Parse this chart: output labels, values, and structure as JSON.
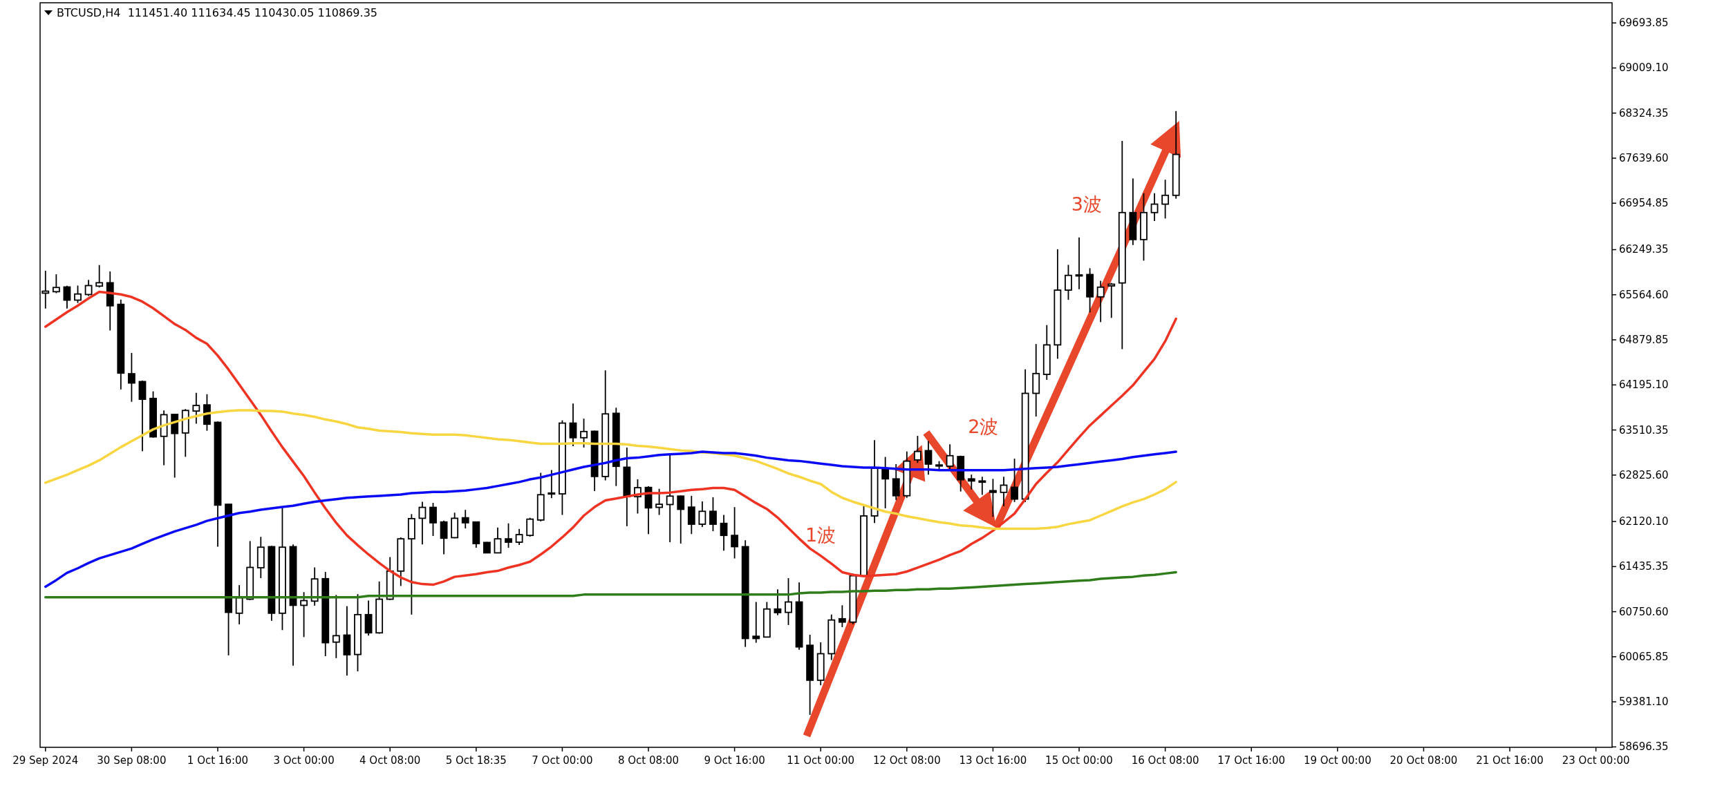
{
  "chart_data": {
    "type": "candlestick",
    "title": "BTCUSD,H4  111451.40 111634.45 110430.05 110869.35",
    "categories": [
      "29 Sep 2024",
      null,
      null,
      null,
      null,
      null,
      null,
      null,
      "30 Sep 08:00",
      null,
      null,
      null,
      null,
      null,
      null,
      null,
      "1 Oct 16:00",
      null,
      null,
      null,
      null,
      null,
      null,
      null,
      "3 Oct 00:00",
      null,
      null,
      null,
      null,
      null,
      null,
      null,
      "4 Oct 08:00",
      null,
      null,
      null,
      null,
      null,
      null,
      null,
      "5 Oct 18:35",
      null,
      null,
      null,
      null,
      null,
      null,
      null,
      "7 Oct 00:00",
      null,
      null,
      null,
      null,
      null,
      null,
      null,
      "8 Oct 08:00",
      null,
      null,
      null,
      null,
      null,
      null,
      null,
      "9 Oct 16:00",
      null,
      null,
      null,
      null,
      null,
      null,
      null,
      "11 Oct 00:00",
      null,
      null,
      null,
      null,
      null,
      null,
      null,
      "12 Oct 08:00",
      null,
      null,
      null,
      null,
      null,
      null,
      null,
      "13 Oct 16:00",
      null,
      null,
      null,
      null,
      null,
      null,
      null,
      "15 Oct 00:00",
      null,
      null,
      null,
      null,
      null,
      null,
      null,
      "16 Oct 08:00",
      null,
      null,
      null,
      null,
      null,
      null,
      null,
      "17 Oct 16:00",
      null,
      null,
      null,
      null,
      null,
      null,
      null,
      "19 Oct 00:00",
      null,
      null,
      null,
      null,
      null,
      null,
      null,
      "20 Oct 08:00",
      null,
      null,
      null,
      null,
      null,
      null,
      null,
      "21 Oct 16:00",
      null,
      null,
      null,
      null,
      null,
      null,
      null,
      "23 Oct 00:00",
      null
    ],
    "ohlc": [
      [
        65589,
        65930,
        65355,
        65619
      ],
      [
        65611,
        65875,
        65589,
        65675
      ],
      [
        65683,
        65700,
        65355,
        65483
      ],
      [
        65483,
        65704,
        65440,
        65576
      ],
      [
        65568,
        65790,
        65547,
        65704
      ],
      [
        65696,
        66016,
        65675,
        65747
      ],
      [
        65747,
        65918,
        65022,
        65397
      ],
      [
        65419,
        65491,
        64126,
        64374
      ],
      [
        64365,
        64681,
        63939,
        64224
      ],
      [
        64246,
        64260,
        63188,
        63977
      ],
      [
        63990,
        64097,
        63393,
        63406
      ],
      [
        63414,
        63807,
        62975,
        63743
      ],
      [
        63747,
        63755,
        62787,
        63457
      ],
      [
        63465,
        63828,
        63103,
        63807
      ],
      [
        63798,
        64075,
        63606,
        63883
      ],
      [
        63892,
        64054,
        63499,
        63598
      ],
      [
        63627,
        63640,
        61738,
        62369
      ],
      [
        62382,
        62390,
        60087,
        60740
      ],
      [
        60727,
        61154,
        60557,
        60962
      ],
      [
        60940,
        61823,
        60928,
        61423
      ],
      [
        61418,
        61887,
        61260,
        61730
      ],
      [
        61738,
        61751,
        60612,
        60727
      ],
      [
        60727,
        62327,
        60471,
        61730
      ],
      [
        61738,
        61772,
        59930,
        60847
      ],
      [
        60847,
        61047,
        60365,
        60919
      ],
      [
        60911,
        61423,
        60842,
        61248
      ],
      [
        61252,
        61354,
        60075,
        60279
      ],
      [
        60288,
        61004,
        60045,
        60386
      ],
      [
        60395,
        60834,
        59780,
        60096
      ],
      [
        60100,
        61017,
        59844,
        60706
      ],
      [
        60706,
        60919,
        60386,
        60429
      ],
      [
        60429,
        61209,
        60416,
        60940
      ],
      [
        60940,
        61580,
        60928,
        61367
      ],
      [
        61367,
        61879,
        61141,
        61857
      ],
      [
        61857,
        62233,
        60706,
        62164
      ],
      [
        62169,
        62420,
        61772,
        62335
      ],
      [
        62335,
        62403,
        61900,
        62101
      ],
      [
        62113,
        62135,
        61623,
        61866
      ],
      [
        61875,
        62254,
        61866,
        62169
      ],
      [
        62177,
        62297,
        62015,
        62101
      ],
      [
        62113,
        62120,
        61721,
        61785
      ],
      [
        61802,
        61810,
        61640,
        61644
      ],
      [
        61644,
        62028,
        61640,
        61857
      ],
      [
        61857,
        62092,
        61721,
        61806
      ],
      [
        61806,
        62007,
        61764,
        61921
      ],
      [
        61909,
        62177,
        61891,
        62156
      ],
      [
        62143,
        62860,
        62122,
        62527
      ],
      [
        62544,
        62902,
        62476,
        62553
      ],
      [
        62540,
        63657,
        62220,
        63615
      ],
      [
        63615,
        63913,
        63265,
        63393
      ],
      [
        63393,
        63683,
        63244,
        63487
      ],
      [
        63491,
        63500,
        62583,
        62804
      ],
      [
        62804,
        64416,
        62745,
        63755
      ],
      [
        63764,
        63849,
        62659,
        62958
      ],
      [
        62945,
        63244,
        62049,
        62497
      ],
      [
        62497,
        62762,
        62241,
        62634
      ],
      [
        62638,
        62655,
        61930,
        62327
      ],
      [
        62335,
        62617,
        62220,
        62382
      ],
      [
        62378,
        63137,
        61806,
        62506
      ],
      [
        62506,
        62515,
        61785,
        62305
      ],
      [
        62339,
        62510,
        61930,
        62079
      ],
      [
        62079,
        62425,
        62037,
        62275
      ],
      [
        62275,
        62489,
        61973,
        62079
      ],
      [
        62092,
        62220,
        61678,
        61909
      ],
      [
        61909,
        62339,
        61559,
        61738
      ],
      [
        61738,
        61836,
        60215,
        60343
      ],
      [
        60377,
        60898,
        60279,
        60343
      ],
      [
        60365,
        60898,
        60360,
        60791
      ],
      [
        60791,
        61090,
        60697,
        60736
      ],
      [
        60740,
        61260,
        60548,
        60898
      ],
      [
        60898,
        61196,
        60173,
        60215
      ],
      [
        60240,
        60400,
        59184,
        59709
      ],
      [
        59709,
        60285,
        59632,
        60112
      ],
      [
        60112,
        60707,
        60016,
        60624
      ],
      [
        60643,
        60848,
        60515,
        60592
      ],
      [
        60592,
        61328,
        60560,
        61296
      ],
      [
        61296,
        62352,
        61283,
        62205
      ],
      [
        62205,
        63357,
        62096,
        62928
      ],
      [
        62928,
        63101,
        62320,
        62768
      ],
      [
        62768,
        62992,
        62448,
        62512
      ],
      [
        62512,
        63184,
        62480,
        63037
      ],
      [
        63056,
        63421,
        63011,
        63184
      ],
      [
        63197,
        63344,
        62832,
        62992
      ],
      [
        62979,
        63037,
        62896,
        62966
      ],
      [
        62960,
        63293,
        62896,
        63120
      ],
      [
        63107,
        63120,
        62576,
        62755
      ],
      [
        62768,
        62832,
        62608,
        62736
      ],
      [
        62736,
        62800,
        62525,
        62717
      ],
      [
        62589,
        62768,
        62192,
        62563
      ],
      [
        62563,
        62800,
        62352,
        62672
      ],
      [
        62640,
        63075,
        62416,
        62461
      ],
      [
        62461,
        64432,
        62416,
        64067
      ],
      [
        64067,
        64816,
        63715,
        64368
      ],
      [
        64355,
        65104,
        64272,
        64803
      ],
      [
        64803,
        66256,
        64592,
        65635
      ],
      [
        65635,
        66019,
        65488,
        65859
      ],
      [
        65853,
        66435,
        65648,
        65866
      ],
      [
        65872,
        65968,
        65296,
        65533
      ],
      [
        65533,
        65776,
        65149,
        65680
      ],
      [
        65699,
        65744,
        65213,
        65725
      ],
      [
        65744,
        67901,
        64739,
        66813
      ],
      [
        66813,
        67331,
        66320,
        66403
      ],
      [
        66403,
        67107,
        66083,
        66813
      ],
      [
        66813,
        67107,
        66685,
        66941
      ],
      [
        66941,
        67312,
        66723,
        67075
      ],
      [
        67075,
        68355,
        67024,
        67696
      ],
      null,
      null,
      null,
      null,
      null,
      null,
      null,
      null,
      null,
      null,
      null,
      null,
      null,
      null,
      null,
      null,
      null,
      null,
      null,
      null,
      null,
      null,
      null,
      null,
      null,
      null,
      null,
      null,
      null,
      null,
      null,
      null,
      null,
      null,
      null,
      null,
      null,
      null,
      null,
      null
    ],
    "series": [
      {
        "type": "line",
        "color": "#ee3322",
        "values": [
          65080,
          65190,
          65300,
          65400,
          65510,
          65610,
          65590,
          65570,
          65530,
          65460,
          65360,
          65240,
          65120,
          65030,
          64910,
          64820,
          64640,
          64430,
          64200,
          63970,
          63740,
          63490,
          63250,
          63030,
          62810,
          62560,
          62320,
          62100,
          61910,
          61760,
          61620,
          61490,
          61370,
          61270,
          61200,
          61170,
          61160,
          61210,
          61280,
          61300,
          61320,
          61350,
          61370,
          61420,
          61460,
          61510,
          61620,
          61740,
          61880,
          62030,
          62210,
          62340,
          62440,
          62470,
          62500,
          62530,
          62550,
          62550,
          62560,
          62580,
          62600,
          62610,
          62630,
          62630,
          62600,
          62500,
          62400,
          62310,
          62180,
          62020,
          61860,
          61710,
          61600,
          61480,
          61350,
          61310,
          61290,
          61300,
          61310,
          61320,
          61360,
          61420,
          61480,
          61540,
          61610,
          61670,
          61780,
          61870,
          61980,
          62110,
          62240,
          62460,
          62690,
          62860,
          63020,
          63210,
          63400,
          63580,
          63730,
          63880,
          64030,
          64190,
          64390,
          64590,
          64860,
          65200,
          null,
          null,
          null,
          null,
          null,
          null,
          null,
          null,
          null,
          null,
          null,
          null,
          null,
          null,
          null,
          null,
          null,
          null,
          null,
          null,
          null,
          null,
          null,
          null,
          null,
          null,
          null,
          null,
          null,
          null,
          null,
          null,
          null,
          null,
          null,
          null,
          null,
          null,
          null,
          null
        ]
      },
      {
        "type": "line",
        "color": "#f8d642",
        "values": [
          62710,
          62770,
          62830,
          62900,
          62970,
          63050,
          63150,
          63250,
          63340,
          63430,
          63520,
          63580,
          63630,
          63680,
          63720,
          63760,
          63780,
          63800,
          63810,
          63810,
          63800,
          63800,
          63790,
          63760,
          63740,
          63710,
          63670,
          63640,
          63600,
          63550,
          63530,
          63500,
          63490,
          63480,
          63460,
          63450,
          63440,
          63440,
          63440,
          63430,
          63410,
          63390,
          63370,
          63360,
          63340,
          63320,
          63300,
          63300,
          63300,
          63310,
          63310,
          63300,
          63300,
          63300,
          63290,
          63270,
          63260,
          63240,
          63220,
          63200,
          63190,
          63170,
          63160,
          63140,
          63120,
          63080,
          63040,
          62980,
          62920,
          62850,
          62800,
          62740,
          62690,
          62570,
          62480,
          62420,
          62370,
          62320,
          62270,
          62240,
          62200,
          62170,
          62140,
          62110,
          62090,
          62060,
          62050,
          62030,
          62010,
          62010,
          62010,
          62010,
          62010,
          62020,
          62040,
          62080,
          62110,
          62140,
          62210,
          62280,
          62350,
          62410,
          62460,
          62530,
          62610,
          62720,
          null,
          null,
          null,
          null,
          null,
          null,
          null,
          null,
          null,
          null,
          null,
          null,
          null,
          null,
          null,
          null,
          null,
          null,
          null,
          null,
          null,
          null,
          null,
          null,
          null,
          null,
          null,
          null,
          null,
          null,
          null,
          null,
          null,
          null,
          null,
          null,
          null,
          null,
          null,
          null
        ]
      },
      {
        "type": "line",
        "color": "#0a0af5",
        "values": [
          61130,
          61230,
          61340,
          61410,
          61490,
          61560,
          61610,
          61660,
          61710,
          61780,
          61850,
          61910,
          61970,
          62020,
          62070,
          62130,
          62170,
          62210,
          62250,
          62270,
          62300,
          62320,
          62340,
          62360,
          62390,
          62420,
          62440,
          62460,
          62480,
          62490,
          62500,
          62510,
          62520,
          62530,
          62550,
          62560,
          62570,
          62570,
          62580,
          62590,
          62610,
          62630,
          62660,
          62690,
          62720,
          62760,
          62790,
          62830,
          62870,
          62910,
          62950,
          62980,
          63010,
          63050,
          63080,
          63090,
          63110,
          63130,
          63140,
          63150,
          63160,
          63180,
          63170,
          63160,
          63160,
          63140,
          63120,
          63090,
          63070,
          63050,
          63040,
          63020,
          63000,
          62980,
          62960,
          62950,
          62940,
          62940,
          62930,
          62920,
          62910,
          62910,
          62910,
          62900,
          62900,
          62900,
          62900,
          62900,
          62900,
          62900,
          62910,
          62920,
          62930,
          62940,
          62950,
          62970,
          62990,
          63010,
          63030,
          63050,
          63070,
          63100,
          63120,
          63140,
          63160,
          63180,
          null,
          null,
          null,
          null,
          null,
          null,
          null,
          null,
          null,
          null,
          null,
          null,
          null,
          null,
          null,
          null,
          null,
          null,
          null,
          null,
          null,
          null,
          null,
          null,
          null,
          null,
          null,
          null,
          null,
          null,
          null,
          null,
          null,
          null,
          null,
          null,
          null,
          null,
          null,
          null
        ]
      },
      {
        "type": "line",
        "color": "#2e7d1a",
        "values": [
          60970,
          60970,
          60970,
          60970,
          60970,
          60970,
          60970,
          60970,
          60970,
          60970,
          60970,
          60970,
          60970,
          60970,
          60970,
          60970,
          60970,
          60970,
          60970,
          60970,
          60970,
          60970,
          60970,
          60970,
          60970,
          60970,
          60970,
          60970,
          60970,
          60970,
          60990,
          60990,
          60990,
          60990,
          60990,
          60990,
          60990,
          60990,
          60990,
          60990,
          60990,
          60990,
          60990,
          60990,
          60990,
          60990,
          60990,
          60990,
          60990,
          60990,
          61010,
          61010,
          61010,
          61010,
          61010,
          61010,
          61010,
          61010,
          61010,
          61010,
          61010,
          61010,
          61010,
          61010,
          61010,
          61010,
          61010,
          61010,
          61010,
          61010,
          61030,
          61040,
          61040,
          61050,
          61050,
          61060,
          61060,
          61070,
          61070,
          61080,
          61080,
          61090,
          61090,
          61100,
          61100,
          61110,
          61120,
          61130,
          61140,
          61150,
          61160,
          61170,
          61180,
          61190,
          61200,
          61210,
          61220,
          61230,
          61250,
          61260,
          61270,
          61280,
          61300,
          61310,
          61330,
          61350,
          null,
          null,
          null,
          null,
          null,
          null,
          null,
          null,
          null,
          null,
          null,
          null,
          null,
          null,
          null,
          null,
          null,
          null,
          null,
          null,
          null,
          null,
          null,
          null,
          null,
          null,
          null,
          null,
          null,
          null,
          null,
          null,
          null,
          null,
          null,
          null,
          null,
          null,
          null,
          null
        ]
      }
    ],
    "ylim": [
      58690,
      70000
    ],
    "yticks": [
      {
        "value": 69693.85,
        "label": "69693.85"
      },
      {
        "value": 69009.1,
        "label": "69009.10"
      },
      {
        "value": 68324.35,
        "label": "68324.35"
      },
      {
        "value": 67639.6,
        "label": "67639.60"
      },
      {
        "value": 66954.85,
        "label": "66954.85"
      },
      {
        "value": 66249.35,
        "label": "66249.35"
      },
      {
        "value": 65564.6,
        "label": "65564.60"
      },
      {
        "value": 64879.85,
        "label": "64879.85"
      },
      {
        "value": 64195.1,
        "label": "64195.10"
      },
      {
        "value": 63510.35,
        "label": "63510.35"
      },
      {
        "value": 62825.6,
        "label": "62825.60"
      },
      {
        "value": 62120.1,
        "label": "62120.10"
      },
      {
        "value": 61435.35,
        "label": "61435.35"
      },
      {
        "value": 60750.6,
        "label": "60750.60"
      },
      {
        "value": 60065.85,
        "label": "60065.85"
      },
      {
        "value": 59381.1,
        "label": "59381.10"
      },
      {
        "value": 58696.35,
        "label": "58696.35"
      }
    ],
    "annotations": [
      "1波",
      "2波",
      "3波"
    ],
    "grid": false
  }
}
